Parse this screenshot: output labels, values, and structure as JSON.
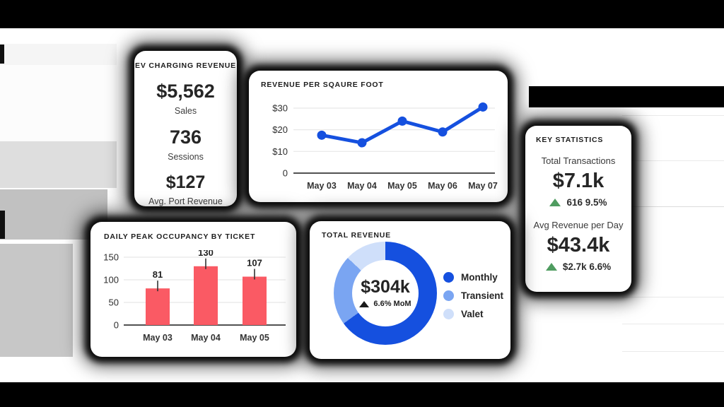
{
  "cards": {
    "ev_charging": {
      "title": "EV CHARGING REVENUE",
      "stats": [
        {
          "value": "$5,562",
          "label": "Sales"
        },
        {
          "value": "736",
          "label": "Sessions"
        },
        {
          "value": "$127",
          "label": "Avg. Port Revenue"
        }
      ]
    },
    "key_statistics": {
      "title": "KEY STATISTICS",
      "stats": [
        {
          "label": "Total Transactions",
          "value": "$7.1k",
          "delta_text": "616 9.5%"
        },
        {
          "label": "Avg Revenue per Day",
          "value": "$43.4k",
          "delta_text": "$2.7k 6.6%"
        }
      ]
    }
  },
  "chart_data": [
    {
      "type": "line",
      "title": "REVENUE PER SQAURE FOOT",
      "x": [
        "May 03",
        "May 04",
        "May 05",
        "May 06",
        "May 07"
      ],
      "values": [
        17.5,
        14,
        24,
        19,
        30.5
      ],
      "ylim": [
        0,
        33
      ],
      "yticks": [
        {
          "v": 30,
          "label": "$30"
        },
        {
          "v": 20,
          "label": "$20"
        },
        {
          "v": 10,
          "label": "$10"
        },
        {
          "v": 0,
          "label": "0"
        }
      ],
      "grid": true,
      "line_color": "#1550DF"
    },
    {
      "type": "bar",
      "title": "DAILY PEAK OCCUPANCY BY TICKET",
      "categories": [
        "May 03",
        "May 04",
        "May 05"
      ],
      "values": [
        81,
        130,
        107
      ],
      "ylim": [
        0,
        160
      ],
      "yticks": [
        150,
        100,
        50,
        0
      ],
      "grid": true,
      "bar_color": "#FA5A64"
    },
    {
      "type": "pie",
      "title": "TOTAL REVENUE",
      "labels": [
        "Monthly",
        "Transient",
        "Valet"
      ],
      "values": [
        65,
        22,
        13
      ],
      "colors": [
        "#1550DF",
        "#7AA5F2",
        "#CFDFFA"
      ],
      "center_value": "$304k",
      "center_delta": "6.6% MoM",
      "legend_position": "right"
    }
  ],
  "colors": {
    "positive_green": "#4F9C60",
    "delta_dark": "#1A1A1A",
    "axis_dark": "#3A3A3A",
    "gridline": "#E7E7E7"
  }
}
